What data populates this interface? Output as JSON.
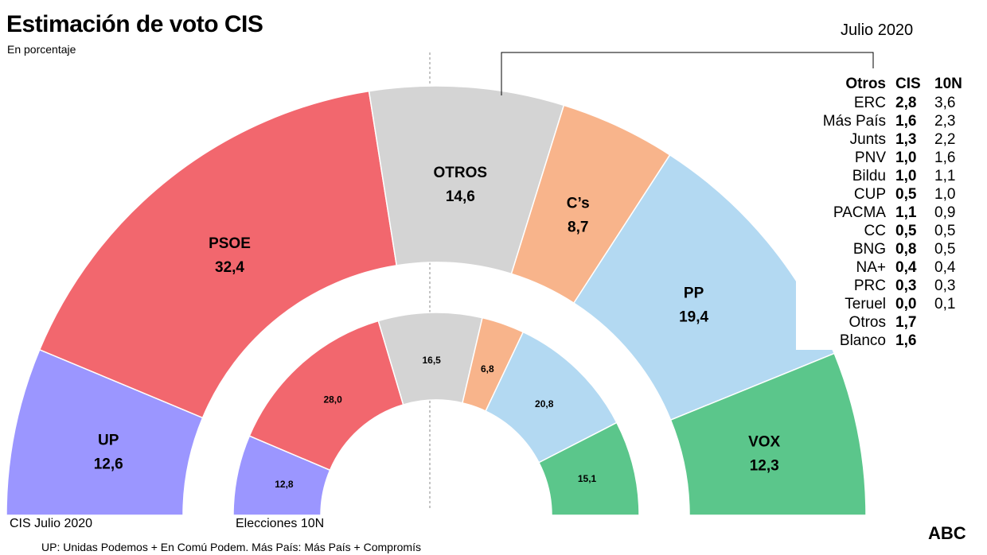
{
  "header": {
    "title": "Estimación de voto CIS",
    "subtitle": "En porcentaje",
    "date": "Julio 2020"
  },
  "chart_data": [
    {
      "type": "pie",
      "subtype": "semicircle-parliament",
      "title": "CIS Julio 2020",
      "categories": [
        "UP",
        "PSOE",
        "OTROS",
        "C’s",
        "PP",
        "VOX"
      ],
      "values": [
        12.6,
        32.4,
        14.6,
        8.7,
        19.4,
        12.3
      ],
      "value_labels": [
        "12,6",
        "32,4",
        "14,6",
        "8,7",
        "19,4",
        "12,3"
      ],
      "colors": [
        "#9b96ff",
        "#f2676e",
        "#d4d4d4",
        "#f8b48b",
        "#b3d9f2",
        "#5bc68b"
      ]
    },
    {
      "type": "pie",
      "subtype": "semicircle-parliament",
      "title": "Elecciones 10N",
      "categories": [
        "UP",
        "PSOE",
        "OTROS",
        "C’s",
        "PP",
        "VOX"
      ],
      "values": [
        12.8,
        28.0,
        16.5,
        6.8,
        20.8,
        15.1
      ],
      "value_labels": [
        "12,8",
        "28,0",
        "16,5",
        "6,8",
        "20,8",
        "15,1"
      ],
      "colors": [
        "#9b96ff",
        "#f2676e",
        "#d4d4d4",
        "#f8b48b",
        "#b3d9f2",
        "#5bc68b"
      ]
    },
    {
      "type": "table",
      "columns": [
        "Otros",
        "CIS",
        "10N"
      ],
      "rows": [
        [
          "ERC",
          "2,8",
          "3,6"
        ],
        [
          "Más País",
          "1,6",
          "2,3"
        ],
        [
          "Junts",
          "1,3",
          "2,2"
        ],
        [
          "PNV",
          "1,0",
          "1,6"
        ],
        [
          "Bildu",
          "1,0",
          "1,1"
        ],
        [
          "CUP",
          "0,5",
          "1,0"
        ],
        [
          "PACMA",
          "1,1",
          "0,9"
        ],
        [
          "CC",
          "0,5",
          "0,5"
        ],
        [
          "BNG",
          "0,8",
          "0,5"
        ],
        [
          "NA+",
          "0,4",
          "0,4"
        ],
        [
          "PRC",
          "0,3",
          "0,3"
        ],
        [
          "Teruel",
          "0,0",
          "0,1"
        ],
        [
          "Otros",
          "1,7",
          ""
        ],
        [
          "Blanco",
          "1,6",
          ""
        ]
      ]
    }
  ],
  "captions": {
    "outer": "CIS Julio 2020",
    "inner": "Elecciones 10N"
  },
  "footnote": "UP: Unidas Podemos + En Comú Podem. Más País: Más País + Compromís",
  "brand": "ABC"
}
